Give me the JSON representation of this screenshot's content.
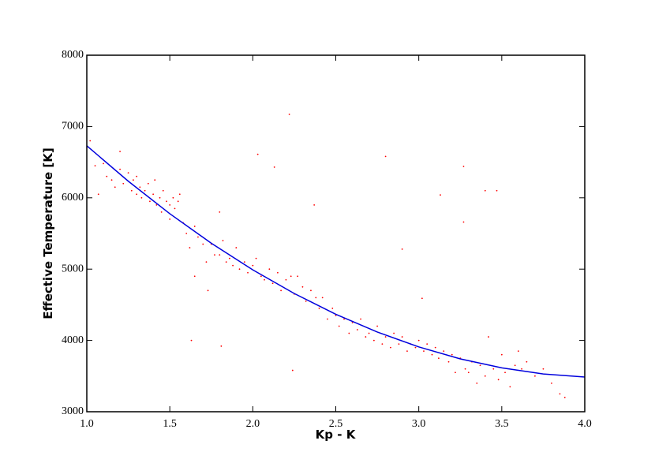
{
  "chart_data": {
    "type": "scatter",
    "x_label": "Kp - K",
    "y_label": "Effective Temperature [K]",
    "xlim": [
      1,
      4
    ],
    "ylim": [
      3000,
      8000
    ],
    "xticks": [
      {
        "value": 1,
        "label": "1.0"
      },
      {
        "value": 1.5,
        "label": "1.5"
      },
      {
        "value": 2,
        "label": "2.0"
      },
      {
        "value": 2.5,
        "label": "2.5"
      },
      {
        "value": 3,
        "label": "3.0"
      },
      {
        "value": 3.5,
        "label": "3.5"
      },
      {
        "value": 4,
        "label": "4.0"
      }
    ],
    "yticks": [
      3000,
      4000,
      5000,
      6000,
      7000,
      8000
    ],
    "grid": false,
    "series": [
      {
        "mode": "points",
        "color": "#ff0000",
        "x": [
          1.02,
          1.05,
          1.07,
          1.1,
          1.12,
          1.15,
          1.17,
          1.2,
          1.2,
          1.22,
          1.25,
          1.27,
          1.28,
          1.3,
          1.3,
          1.32,
          1.33,
          1.35,
          1.37,
          1.38,
          1.4,
          1.41,
          1.42,
          1.44,
          1.45,
          1.46,
          1.48,
          1.5,
          1.5,
          1.52,
          1.53,
          1.55,
          1.56,
          1.58,
          1.6,
          1.62,
          1.63,
          1.65,
          1.65,
          1.67,
          1.7,
          1.72,
          1.73,
          1.75,
          1.77,
          1.8,
          1.8,
          1.81,
          1.82,
          1.84,
          1.86,
          1.88,
          1.9,
          1.92,
          1.95,
          1.97,
          2.0,
          2.02,
          2.03,
          2.05,
          2.07,
          2.1,
          2.12,
          2.13,
          2.15,
          2.17,
          2.2,
          2.22,
          2.23,
          2.24,
          2.25,
          2.27,
          2.3,
          2.32,
          2.35,
          2.37,
          2.38,
          2.4,
          2.42,
          2.45,
          2.48,
          2.5,
          2.52,
          2.55,
          2.58,
          2.6,
          2.63,
          2.65,
          2.68,
          2.7,
          2.73,
          2.75,
          2.78,
          2.8,
          2.8,
          2.83,
          2.85,
          2.88,
          2.9,
          2.9,
          2.93,
          2.95,
          2.98,
          3.0,
          3.02,
          3.03,
          3.05,
          3.08,
          3.1,
          3.12,
          3.13,
          3.15,
          3.18,
          3.2,
          3.22,
          3.25,
          3.27,
          3.27,
          3.28,
          3.3,
          3.32,
          3.35,
          3.37,
          3.4,
          3.4,
          3.42,
          3.45,
          3.47,
          3.48,
          3.5,
          3.52,
          3.55,
          3.58,
          3.6,
          3.62,
          3.65,
          3.7,
          3.75,
          3.8,
          3.85,
          3.88
        ],
        "values": [
          6800,
          6450,
          6050,
          6480,
          6300,
          6250,
          6150,
          6650,
          6400,
          6200,
          6350,
          6100,
          6250,
          6300,
          6050,
          6150,
          6000,
          6100,
          6200,
          5950,
          6050,
          6250,
          5900,
          6000,
          5800,
          6100,
          5950,
          5900,
          5700,
          6000,
          5850,
          5950,
          6050,
          5650,
          5500,
          5300,
          4000,
          4900,
          5600,
          5450,
          5350,
          5100,
          4700,
          5350,
          5200,
          5800,
          5200,
          3920,
          5400,
          5100,
          5150,
          5050,
          5300,
          5000,
          5100,
          4950,
          5050,
          5150,
          6610,
          4900,
          4850,
          5000,
          4800,
          6430,
          4950,
          4700,
          4850,
          7170,
          4900,
          3580,
          4650,
          4900,
          4750,
          4550,
          4700,
          5900,
          4600,
          4450,
          4600,
          4300,
          4450,
          4350,
          4200,
          4300,
          4100,
          4250,
          4150,
          4300,
          4050,
          4100,
          4000,
          4200,
          3950,
          6580,
          4050,
          3900,
          4100,
          3950,
          5280,
          4050,
          3850,
          3950,
          3900,
          4000,
          4590,
          3850,
          3950,
          3800,
          3900,
          3750,
          6040,
          3850,
          3700,
          3800,
          3550,
          3750,
          6440,
          5660,
          3600,
          3550,
          3700,
          3400,
          3650,
          6100,
          3500,
          4050,
          3600,
          6100,
          3450,
          3800,
          3550,
          3350,
          3650,
          3850,
          3600,
          3700,
          3500,
          3600,
          3400,
          3250,
          3200
        ]
      },
      {
        "mode": "line",
        "color": "#0000dd",
        "x": [
          1,
          1.25,
          1.5,
          1.75,
          2,
          2.25,
          2.5,
          2.75,
          3,
          3.25,
          3.5,
          3.75,
          4
        ],
        "values": [
          6730,
          6233,
          5777,
          5363,
          4990,
          4658,
          4367,
          4118,
          3909,
          3741,
          3615,
          3530,
          3487
        ]
      }
    ]
  }
}
